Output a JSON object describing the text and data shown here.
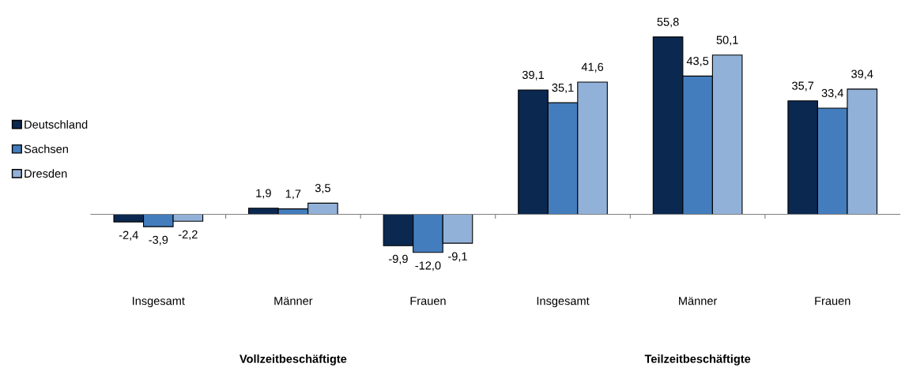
{
  "chart_data": {
    "type": "bar",
    "categories": [
      "Insgesamt",
      "Männer",
      "Frauen",
      "Insgesamt",
      "Männer",
      "Frauen"
    ],
    "series": [
      {
        "name": "Deutschland",
        "color": "#0b2850",
        "values": [
          -2.4,
          1.9,
          -9.9,
          39.1,
          55.8,
          35.7
        ],
        "value_labels": [
          "-2,4",
          "1,9",
          "-9,9",
          "39,1",
          "55,8",
          "35,7"
        ]
      },
      {
        "name": "Sachsen",
        "color": "#437dbd",
        "values": [
          -3.9,
          1.7,
          -12.0,
          35.1,
          43.5,
          33.4
        ],
        "value_labels": [
          "-3,9",
          "1,7",
          "-12,0",
          "35,1",
          "43,5",
          "33,4"
        ]
      },
      {
        "name": "Dresden",
        "color": "#92b1d9",
        "values": [
          -2.2,
          3.5,
          -9.1,
          41.6,
          50.1,
          39.4
        ],
        "value_labels": [
          "-2,2",
          "3,5",
          "-9,1",
          "41,6",
          "50,1",
          "39,4"
        ]
      }
    ],
    "annotations": [
      "Vollzeitbeschäftigte",
      "Teilzeitbeschäftigte"
    ],
    "tick_labels": "x",
    "legend": "left",
    "grid": false
  }
}
